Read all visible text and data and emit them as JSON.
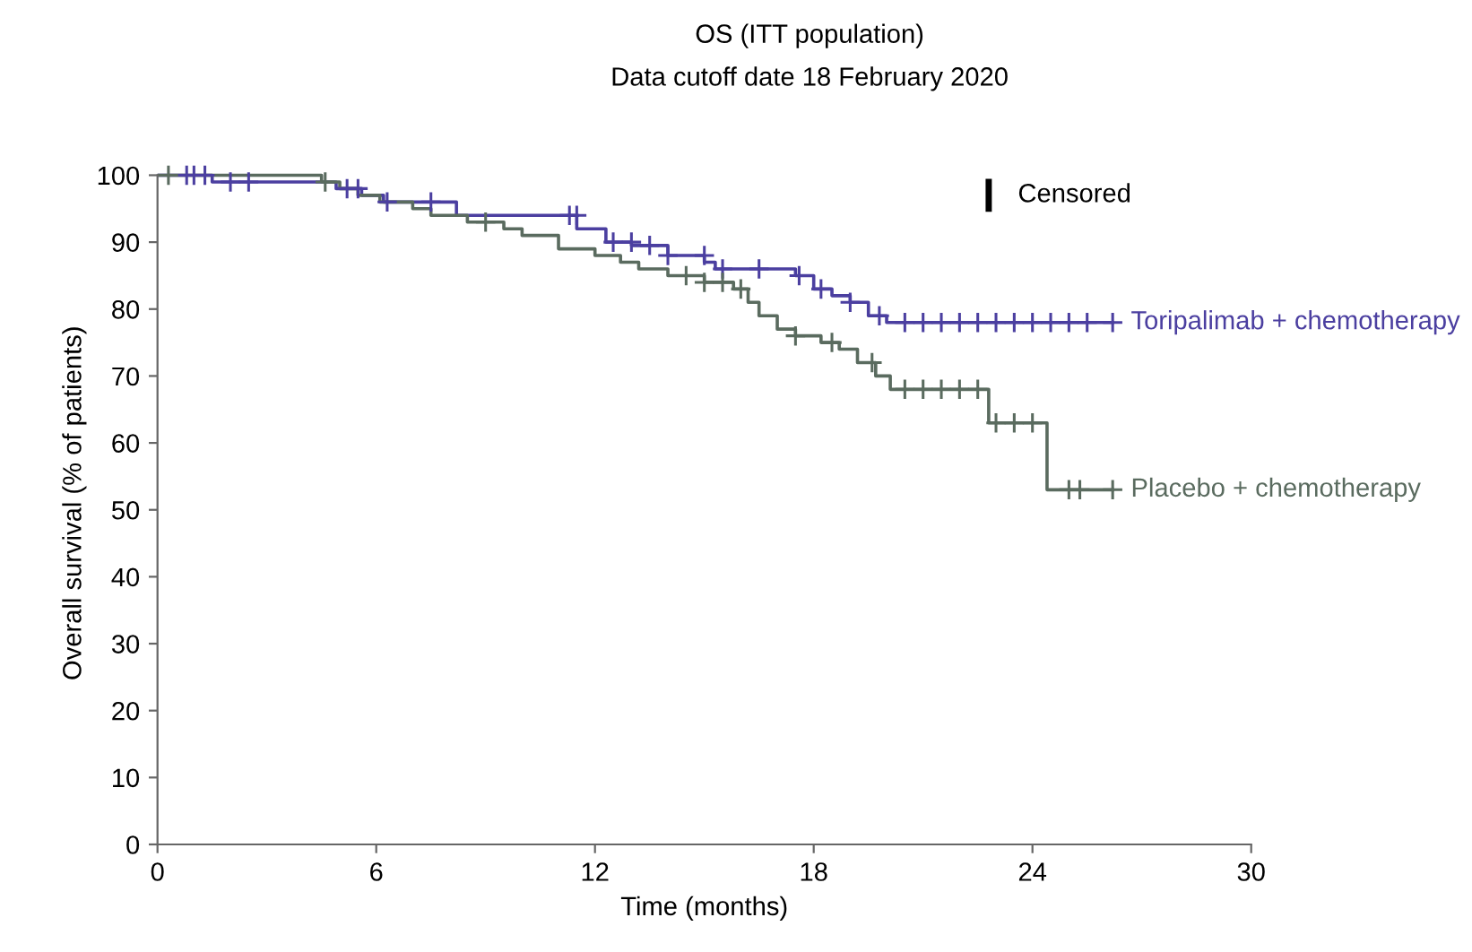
{
  "chart_data": {
    "type": "step",
    "title": "OS (ITT population)",
    "subtitle": "Data cutoff date 18 February 2020",
    "xlabel": "Time (months)",
    "ylabel": "Overall survival (% of patients)",
    "xlim": [
      0,
      30
    ],
    "xticks": [
      0,
      6,
      12,
      18,
      24,
      30
    ],
    "ylim": [
      0,
      100
    ],
    "yticks": [
      0,
      10,
      20,
      30,
      40,
      50,
      60,
      70,
      80,
      90,
      100
    ],
    "grid": false,
    "legend": "right",
    "annotations": [
      "Censored"
    ],
    "series": [
      {
        "name": "Toripalimab + chemotherapy",
        "color": "#4b3fa0",
        "x": [
          0,
          1.5,
          4.9,
          5.6,
          6.2,
          8.2,
          11.5,
          12.3,
          13,
          14,
          15,
          15.3,
          17.5,
          18,
          18.5,
          19,
          19.5,
          20,
          26.2
        ],
        "values": [
          100,
          99,
          98,
          97,
          96,
          94,
          92,
          90,
          89.5,
          88,
          87,
          86,
          85,
          83,
          82,
          81,
          79,
          78,
          78
        ]
      },
      {
        "name": "Placebo + chemotherapy",
        "color": "#5a6b5f",
        "x": [
          0,
          4.5,
          5,
          5.5,
          6.1,
          7,
          7.5,
          8.5,
          9.5,
          10,
          11,
          12,
          12.7,
          13.2,
          14,
          15,
          15.8,
          16.2,
          16.5,
          17,
          17.5,
          18.2,
          18.7,
          19.2,
          19.7,
          20.1,
          22.8,
          24.4,
          26.2
        ],
        "values": [
          100,
          99,
          98,
          97,
          96,
          95,
          94,
          93,
          92,
          91,
          89,
          88,
          87,
          86,
          85,
          84,
          83,
          81,
          79,
          77,
          76,
          75,
          74,
          72,
          70,
          68,
          63,
          53,
          53
        ]
      },
      {
        "type": "scatter",
        "marker": "cross",
        "color": "#4b3fa0",
        "x": [
          0.8,
          1.0,
          1.3,
          2,
          2.5,
          5.2,
          5.5,
          6.3,
          7.5,
          11.3,
          11.5,
          12.5,
          13,
          13.5,
          14,
          15,
          15.5,
          16.5,
          17.6,
          18.2,
          19,
          19.8,
          20.5,
          21,
          21.5,
          22,
          22.5,
          23,
          23.5,
          24,
          24.5,
          25,
          25.5,
          26.2
        ],
        "values": [
          100,
          100,
          100,
          99,
          99,
          98,
          98,
          96,
          96,
          94,
          94,
          90,
          90,
          89.5,
          88,
          88,
          86,
          86,
          85,
          83,
          81,
          79,
          78,
          78,
          78,
          78,
          78,
          78,
          78,
          78,
          78,
          78,
          78,
          78
        ]
      },
      {
        "type": "scatter",
        "marker": "cross",
        "color": "#5a6b5f",
        "x": [
          0.3,
          4.6,
          9,
          14.5,
          15,
          15.5,
          16,
          17.5,
          18.5,
          19.6,
          20.5,
          21,
          21.5,
          22,
          22.5,
          23,
          23.5,
          24,
          25,
          25.3,
          26.2
        ],
        "values": [
          100,
          99,
          93,
          85,
          84,
          84,
          83,
          76,
          75,
          72,
          68,
          68,
          68,
          68,
          68,
          63,
          63,
          63,
          53,
          53,
          53
        ]
      }
    ]
  }
}
